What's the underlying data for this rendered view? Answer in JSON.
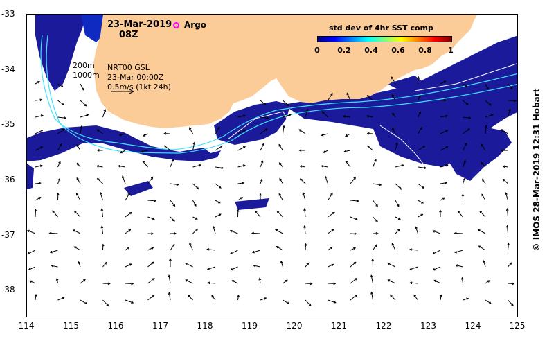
{
  "title": {
    "date": "23-Mar-2019",
    "time": "08Z"
  },
  "argo": {
    "label": "Argo",
    "color": "#ff00ff"
  },
  "colorbar": {
    "title": "std dev of 4hr SST comp",
    "ticks": [
      "0",
      "0.2",
      "0.4",
      "0.6",
      "0.8",
      "1"
    ],
    "colors": [
      "#00007f",
      "#0000ff",
      "#007fff",
      "#00ffff",
      "#7fff7f",
      "#ffff00",
      "#ff7f00",
      "#ff0000",
      "#7f0000"
    ]
  },
  "info": {
    "isobath_200": "200m",
    "isobath_1000": "1000m",
    "product": "NRT00 GSL",
    "valid": "23-Mar 00:00Z",
    "scale": "0.5m/s (1kt 24h)"
  },
  "credit": "© IMOS 28-Mar-2019 12:31 Hobart",
  "axes": {
    "x_ticks": [
      "114",
      "115",
      "116",
      "117",
      "118",
      "119",
      "120",
      "121",
      "122",
      "123",
      "124",
      "125"
    ],
    "y_ticks": [
      "-33",
      "-34",
      "-35",
      "-36",
      "-37",
      "-38"
    ],
    "lon_range": [
      114,
      125
    ],
    "lat_range": [
      -33,
      -38.5
    ]
  },
  "colors": {
    "land": "#fbcb98",
    "cloud_free_sst": "#1a1a9a",
    "isobath": "#40e0ff",
    "front": "#ffffff"
  }
}
